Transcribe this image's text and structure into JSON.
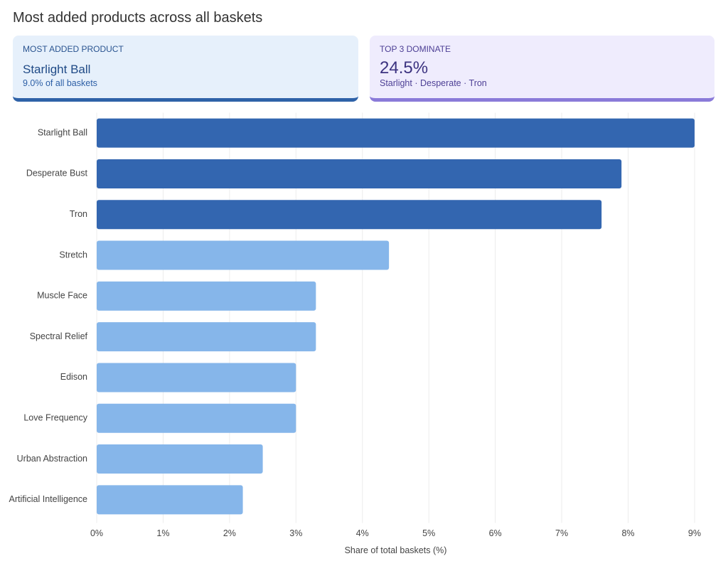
{
  "title": "Most added products across all baskets",
  "cards": [
    {
      "label": "MOST ADDED PRODUCT",
      "value": "Starlight Ball",
      "note": "9.0% of all baskets"
    },
    {
      "label": "TOP 3 DOMINATE",
      "value": "24.5%",
      "note": "Starlight · Desperate · Tron"
    }
  ],
  "chart_data": {
    "type": "bar",
    "orientation": "horizontal",
    "categories": [
      "Starlight Ball",
      "Desperate Bust",
      "Tron",
      "Stretch",
      "Muscle Face",
      "Spectral Relief",
      "Edison",
      "Love Frequency",
      "Urban Abstraction",
      "Artificial Intelligence"
    ],
    "values": [
      9.0,
      7.9,
      7.6,
      4.4,
      3.3,
      3.3,
      3.0,
      3.0,
      2.5,
      2.2
    ],
    "colors": [
      "#3366b0",
      "#3366b0",
      "#3366b0",
      "#86b6ea",
      "#86b6ea",
      "#86b6ea",
      "#86b6ea",
      "#86b6ea",
      "#86b6ea",
      "#86b6ea"
    ],
    "xlim": [
      0,
      9.3
    ],
    "xticks": [
      {
        "value": 0,
        "label": "0%"
      },
      {
        "value": 1,
        "label": "1%"
      },
      {
        "value": 2,
        "label": "2%"
      },
      {
        "value": 3,
        "label": "3%"
      },
      {
        "value": 4,
        "label": "4%"
      },
      {
        "value": 5,
        "label": "5%"
      },
      {
        "value": 6,
        "label": "6%"
      },
      {
        "value": 7,
        "label": "7%"
      },
      {
        "value": 8,
        "label": "8%"
      },
      {
        "value": 9,
        "label": "9%"
      }
    ],
    "xlabel": "Share of total baskets (%)",
    "grid": true
  }
}
